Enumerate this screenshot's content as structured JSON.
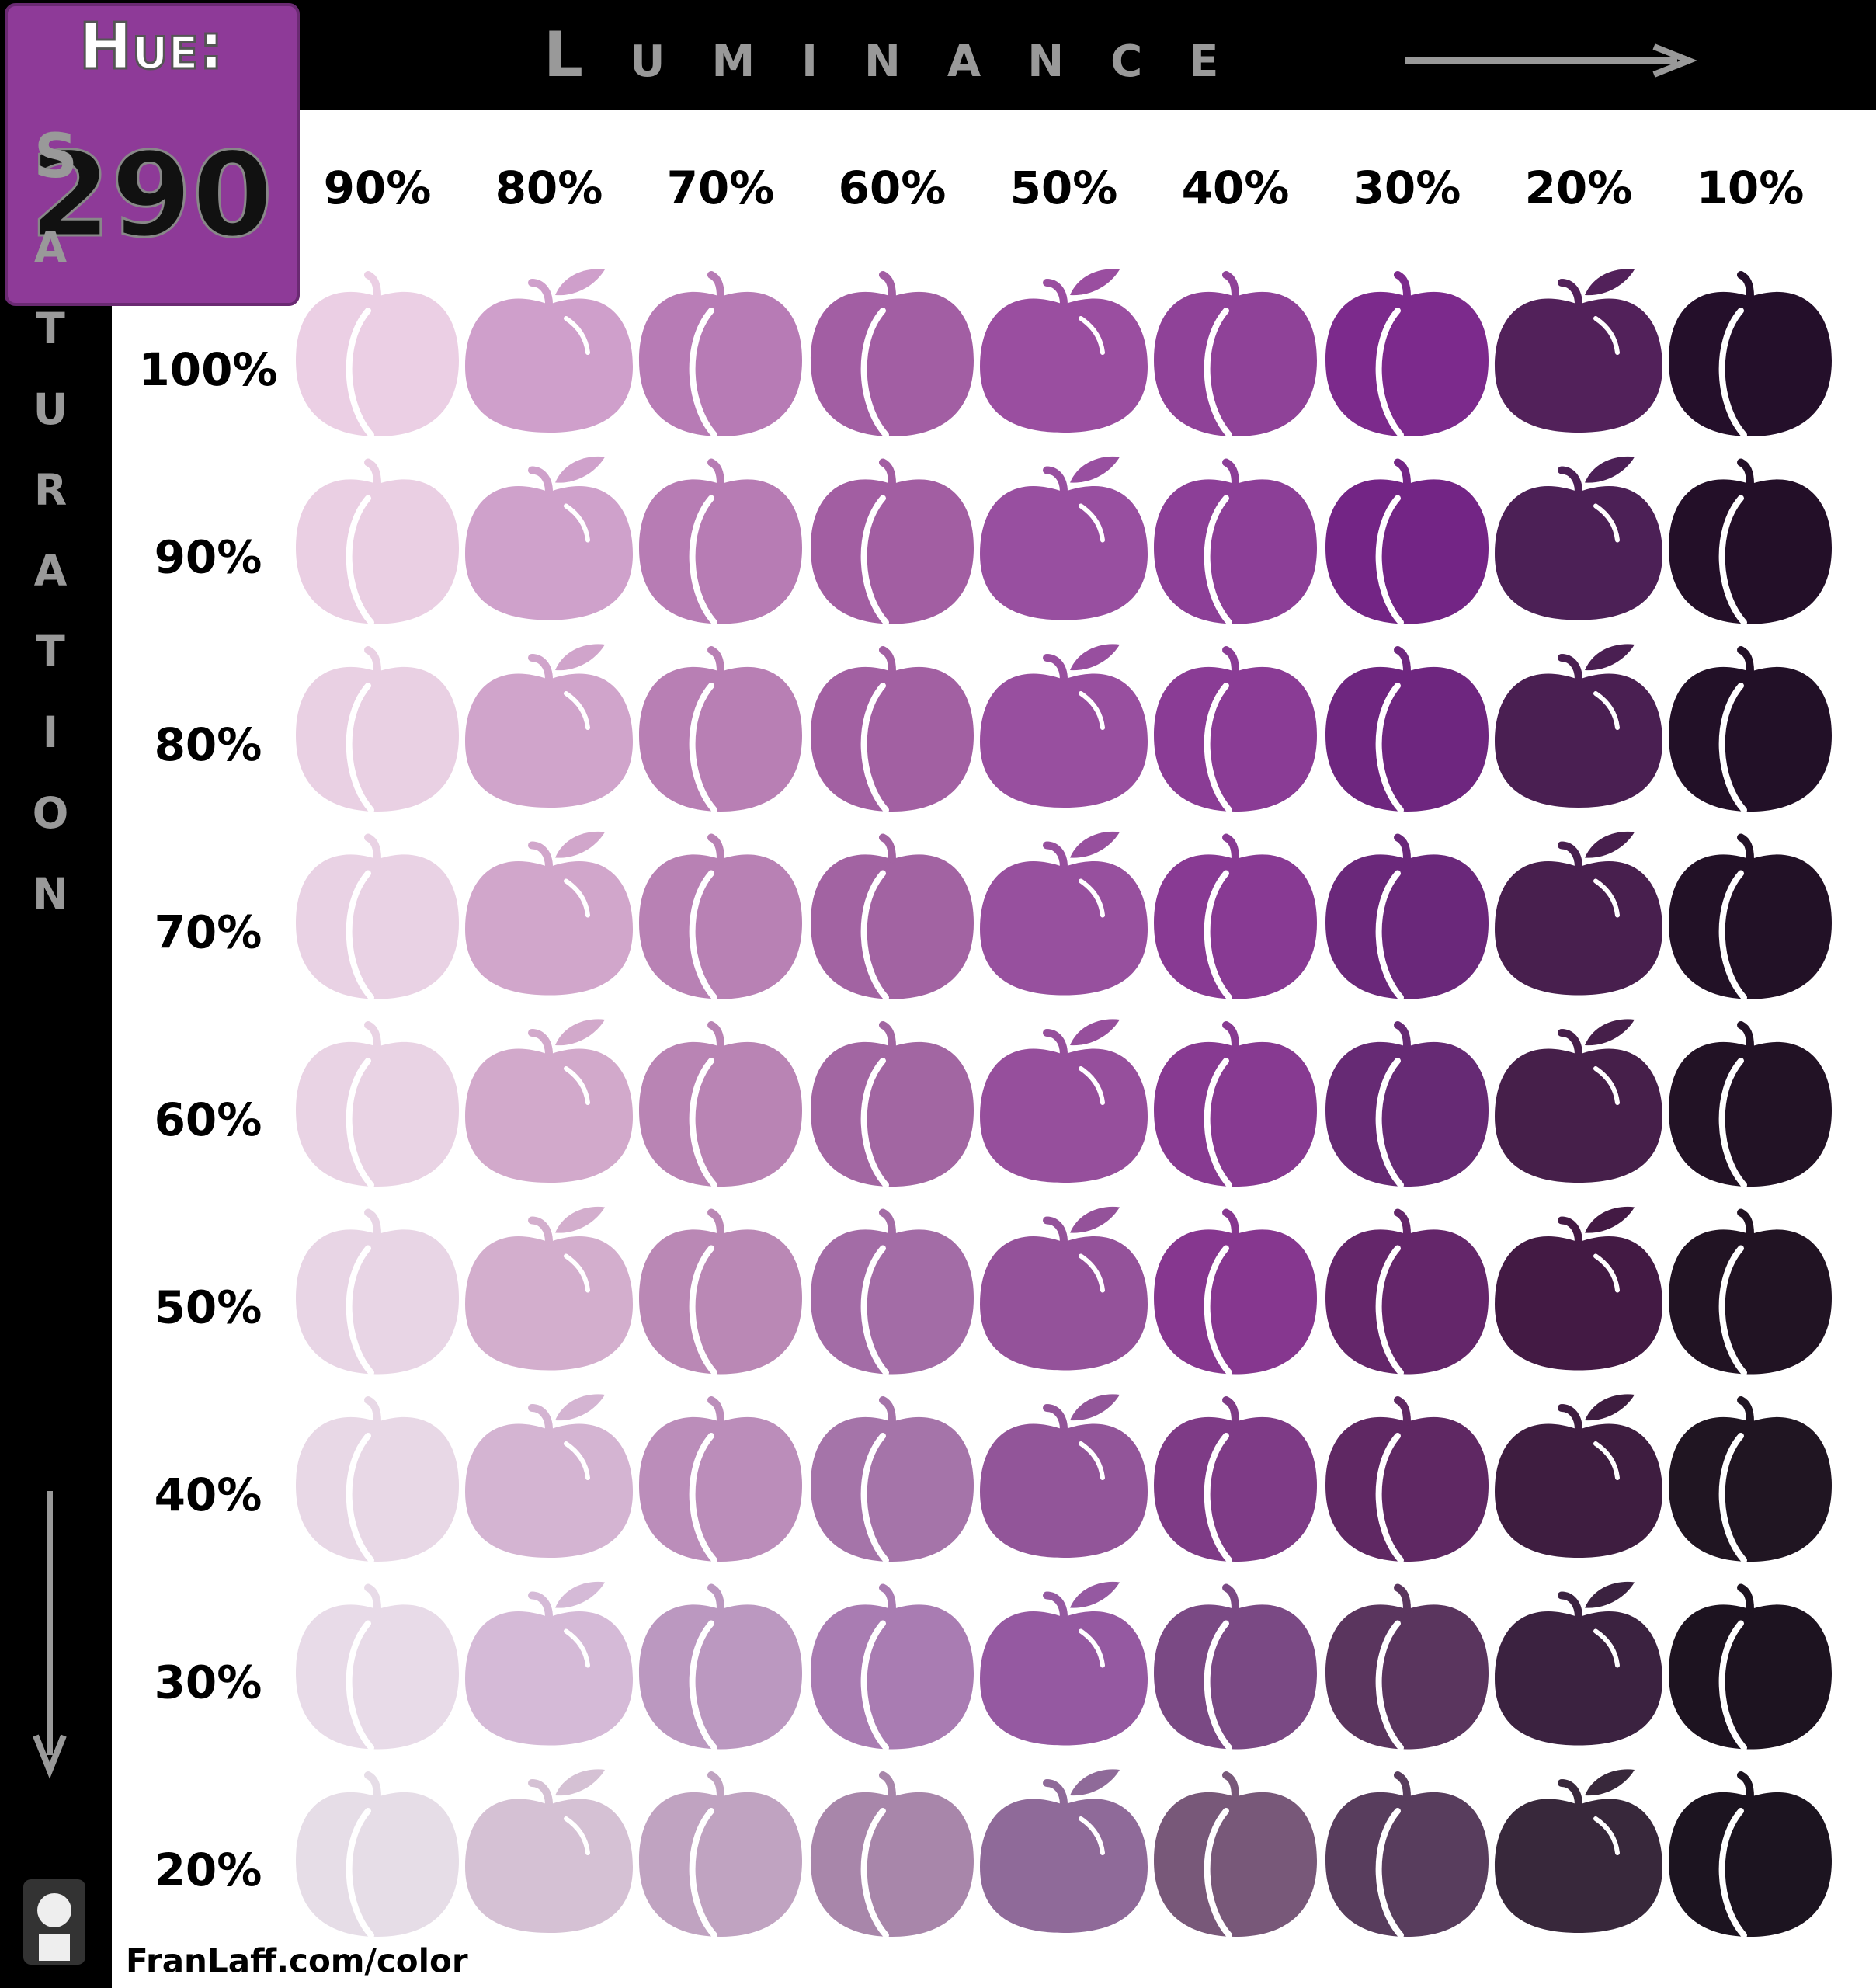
{
  "header": {
    "hue_label": "Hue:",
    "hue_value": "290",
    "luminance_label": "Luminance",
    "saturation_label": "Saturation"
  },
  "columns": [
    "90%",
    "80%",
    "70%",
    "60%",
    "50%",
    "40%",
    "30%",
    "20%",
    "10%"
  ],
  "rows": [
    "100%",
    "90%",
    "80%",
    "70%",
    "60%",
    "50%",
    "40%",
    "30%",
    "20%"
  ],
  "swatches": [
    [
      "#ebcfe4",
      "#cf9fcb",
      "#b77bb5",
      "#a25ea3",
      "#9a4ea0",
      "#8f4298",
      "#7c2a8c",
      "#52215a",
      "#240f2a"
    ],
    [
      "#eacfe3",
      "#cfa1cb",
      "#b77cb4",
      "#a25ea2",
      "#984fa0",
      "#8c3f97",
      "#732585",
      "#4c2056",
      "#230f28"
    ],
    [
      "#e9d0e3",
      "#d0a4cb",
      "#b87fb4",
      "#a260a2",
      "#984f9f",
      "#8a3c95",
      "#6e267f",
      "#4a1f52",
      "#221027"
    ],
    [
      "#e9d2e4",
      "#d1a6cb",
      "#b881b4",
      "#a263a2",
      "#97509e",
      "#883a93",
      "#6a287a",
      "#481f4e",
      "#221126"
    ],
    [
      "#e9d3e4",
      "#d2a9cb",
      "#b984b4",
      "#a266a2",
      "#964f9c",
      "#873a91",
      "#662a74",
      "#461f4a",
      "#221225"
    ],
    [
      "#e8d5e5",
      "#d3aecd",
      "#ba88b5",
      "#a36ca6",
      "#94529a",
      "#86378f",
      "#64266a",
      "#431a44",
      "#211323"
    ],
    [
      "#e8d8e6",
      "#d4b4d2",
      "#bb8dba",
      "#a574a9",
      "#925599",
      "#7e3b86",
      "#5f2863",
      "#3e1d40",
      "#201522"
    ],
    [
      "#e8dbe8",
      "#d5bad7",
      "#bb98c0",
      "#a97cb2",
      "#9559a1",
      "#7a4984",
      "#5a355e",
      "#3b2240",
      "#1d1320"
    ],
    [
      "#e6dde7",
      "#d5c1d4",
      "#c0a3c1",
      "#a886aa",
      "#8f6a99",
      "#785879",
      "#583d5d",
      "#38283b",
      "#1c1420"
    ]
  ],
  "footer": "FranLaff.com/color"
}
